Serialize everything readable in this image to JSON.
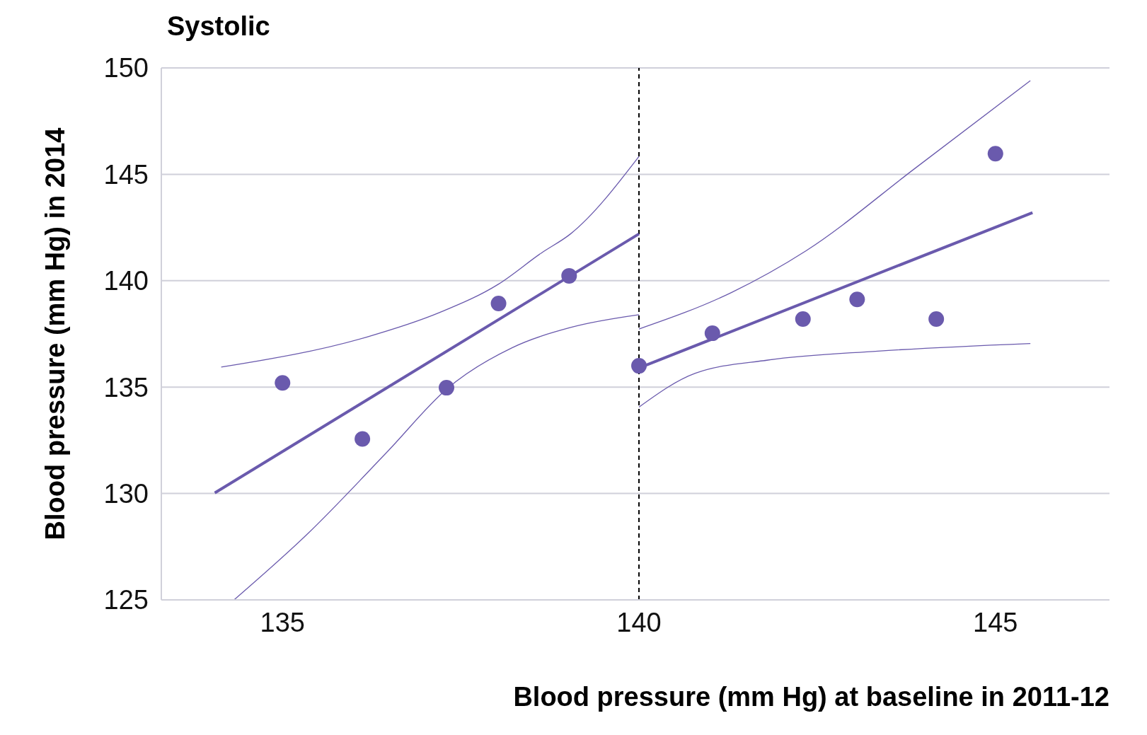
{
  "chart_data": {
    "type": "scatter",
    "title": "Systolic",
    "xlabel": "Blood pressure (mm Hg) at baseline in 2011-12",
    "ylabel": "Blood pressure (mm Hg) in 2014",
    "xlim": [
      133.3,
      146.6
    ],
    "xticks": [
      135,
      140,
      145
    ],
    "ylim": [
      125,
      150
    ],
    "yticks": [
      125,
      130,
      135,
      140,
      145,
      150
    ],
    "grid": "y",
    "series": [
      {
        "color": "#6a5aad",
        "marker": "circle",
        "x": [
          135,
          136.12,
          137.3,
          138.03,
          139.02,
          140,
          141.03,
          142.3,
          143.06,
          144.17,
          145
        ],
        "values": [
          135.2,
          132.56,
          134.97,
          138.93,
          140.23,
          136.0,
          137.53,
          138.2,
          139.12,
          138.2,
          145.97
        ]
      },
      {
        "type": "line",
        "color": "#6a5aad",
        "x": [
          134.05,
          140
        ],
        "values": [
          130.03,
          142.2
        ]
      },
      {
        "type": "line",
        "color": "#6a5aad",
        "x": [
          140,
          145.52
        ],
        "values": [
          135.9,
          143.2
        ]
      },
      {
        "type": "line",
        "color": "#6a5aad",
        "x": [
          134.14,
          136.17,
          137.2,
          138.03,
          138.63,
          139.04,
          140
        ],
        "values": [
          135.94,
          137.34,
          138.5,
          139.84,
          141.3,
          142.2,
          145.84
        ]
      },
      {
        "type": "line",
        "color": "#6a5aad",
        "x": [
          134.32,
          135.35,
          136.48,
          137.3,
          138.22,
          139.04,
          140
        ],
        "values": [
          125,
          128.1,
          132.0,
          134.9,
          136.85,
          137.8,
          138.4
        ]
      },
      {
        "type": "line",
        "color": "#6a5aad",
        "x": [
          140,
          141.3,
          142.34,
          143.88,
          145.49
        ],
        "values": [
          137.73,
          139.45,
          141.4,
          145.3,
          149.4
        ]
      },
      {
        "type": "line",
        "color": "#6a5aad",
        "x": [
          140,
          140.79,
          141.81,
          143.35,
          145.49
        ],
        "values": [
          134.06,
          135.65,
          136.27,
          136.69,
          137.05
        ]
      }
    ],
    "ref_lines": [
      {
        "axis": "x",
        "value": 140,
        "color": "#000000",
        "line_style": "dashed"
      }
    ]
  }
}
